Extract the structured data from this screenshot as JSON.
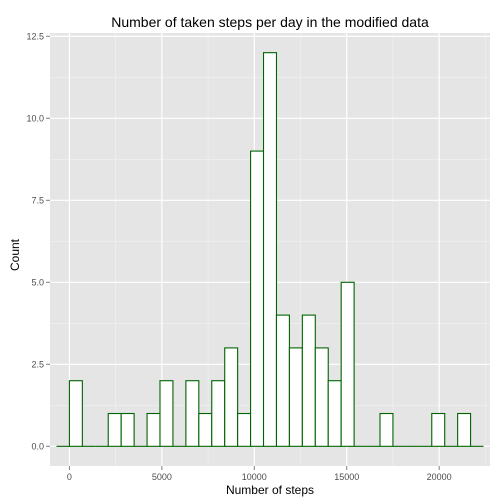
{
  "chart_data": {
    "type": "bar",
    "title": "Number of taken steps per day in the modified data",
    "xlabel": "Number of steps",
    "ylabel": "Count",
    "bin_width": 700,
    "x_range": [
      -1050,
      22750
    ],
    "ylim": [
      -0.6,
      12.6
    ],
    "x_ticks": [
      0,
      5000,
      10000,
      15000,
      20000
    ],
    "x_tick_labels": [
      "0",
      "5000",
      "10000",
      "15000",
      "20000"
    ],
    "y_ticks": [
      0,
      2.5,
      5,
      7.5,
      10,
      12.5
    ],
    "y_tick_labels": [
      "0.0",
      "2.5",
      "5.0",
      "7.5",
      "10.0",
      "12.5"
    ],
    "bins": [
      {
        "x_start": -700,
        "x_end": 0,
        "count": 0
      },
      {
        "x_start": 0,
        "x_end": 700,
        "count": 2
      },
      {
        "x_start": 700,
        "x_end": 1400,
        "count": 0
      },
      {
        "x_start": 1400,
        "x_end": 2100,
        "count": 0
      },
      {
        "x_start": 2100,
        "x_end": 2800,
        "count": 1
      },
      {
        "x_start": 2800,
        "x_end": 3500,
        "count": 1
      },
      {
        "x_start": 3500,
        "x_end": 4200,
        "count": 0
      },
      {
        "x_start": 4200,
        "x_end": 4900,
        "count": 1
      },
      {
        "x_start": 4900,
        "x_end": 5600,
        "count": 2
      },
      {
        "x_start": 5600,
        "x_end": 6300,
        "count": 0
      },
      {
        "x_start": 6300,
        "x_end": 7000,
        "count": 2
      },
      {
        "x_start": 7000,
        "x_end": 7700,
        "count": 1
      },
      {
        "x_start": 7700,
        "x_end": 8400,
        "count": 2
      },
      {
        "x_start": 8400,
        "x_end": 9100,
        "count": 3
      },
      {
        "x_start": 9100,
        "x_end": 9800,
        "count": 1
      },
      {
        "x_start": 9800,
        "x_end": 10500,
        "count": 9
      },
      {
        "x_start": 10500,
        "x_end": 11200,
        "count": 12
      },
      {
        "x_start": 11200,
        "x_end": 11900,
        "count": 4
      },
      {
        "x_start": 11900,
        "x_end": 12600,
        "count": 3
      },
      {
        "x_start": 12600,
        "x_end": 13300,
        "count": 4
      },
      {
        "x_start": 13300,
        "x_end": 14000,
        "count": 3
      },
      {
        "x_start": 14000,
        "x_end": 14700,
        "count": 2
      },
      {
        "x_start": 14700,
        "x_end": 15400,
        "count": 5
      },
      {
        "x_start": 15400,
        "x_end": 16100,
        "count": 0
      },
      {
        "x_start": 16100,
        "x_end": 16800,
        "count": 0
      },
      {
        "x_start": 16800,
        "x_end": 17500,
        "count": 1
      },
      {
        "x_start": 17500,
        "x_end": 18200,
        "count": 0
      },
      {
        "x_start": 18200,
        "x_end": 18900,
        "count": 0
      },
      {
        "x_start": 18900,
        "x_end": 19600,
        "count": 0
      },
      {
        "x_start": 19600,
        "x_end": 20300,
        "count": 1
      },
      {
        "x_start": 20300,
        "x_end": 21000,
        "count": 0
      },
      {
        "x_start": 21000,
        "x_end": 21700,
        "count": 1
      },
      {
        "x_start": 21700,
        "x_end": 22400,
        "count": 0
      }
    ],
    "grid": true,
    "legend": "none"
  },
  "colors": {
    "panel_background": "#E5E5E5",
    "grid_major": "#FFFFFF",
    "grid_minor": "#F2F2F2",
    "bar_fill": "#FFFFFF",
    "bar_outline": "#006400",
    "tick_text": "#4D4D4D",
    "tick_mark": "#7F7F7F"
  }
}
